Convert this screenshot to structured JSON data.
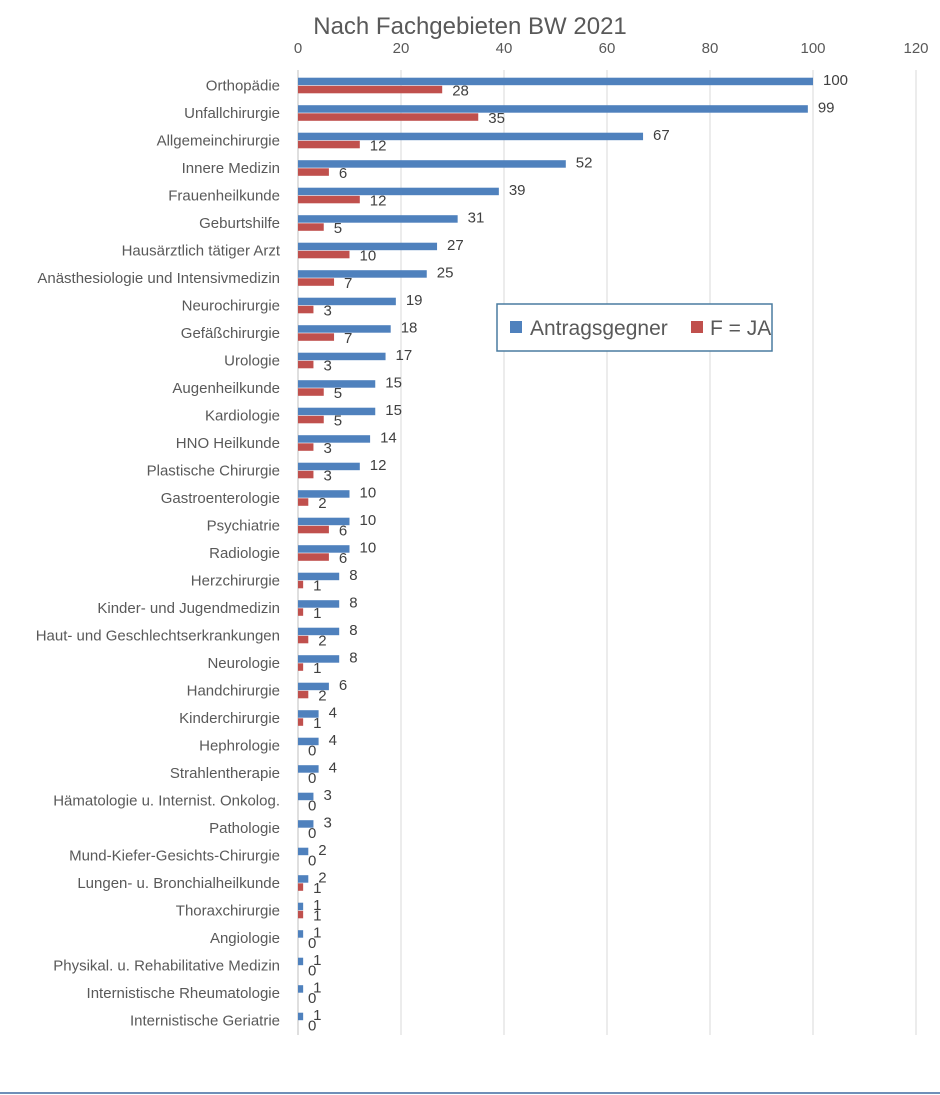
{
  "chart_data": {
    "type": "bar",
    "orientation": "horizontal",
    "title": "Nach Fachgebieten BW 2021",
    "x_ticks": [
      0,
      20,
      40,
      60,
      80,
      100,
      120
    ],
    "xlim": [
      0,
      120
    ],
    "grid": "vertical",
    "legend_position": "center-right",
    "categories": [
      "Orthopädie",
      "Unfallchirurgie",
      "Allgemeinchirurgie",
      "Innere Medizin",
      "Frauenheilkunde",
      "Geburtshilfe",
      "Hausärztlich tätiger Arzt",
      "Anästhesiologie und Intensivmedizin",
      "Neurochirurgie",
      "Gefäßchirurgie",
      "Urologie",
      "Augenheilkunde",
      "Kardiologie",
      "HNO Heilkunde",
      "Plastische Chirurgie",
      "Gastroenterologie",
      "Psychiatrie",
      "Radiologie",
      "Herzchirurgie",
      "Kinder- und Jugendmedizin",
      "Haut- und Geschlechtserkrankungen",
      "Neurologie",
      "Handchirurgie",
      "Kinderchirurgie",
      "Hephrologie",
      "Strahlentherapie",
      "Hämatologie u. Internist. Onkolog.",
      "Pathologie",
      "Mund-Kiefer-Gesichts-Chirurgie",
      "Lungen- u. Bronchialheilkunde",
      "Thoraxchirurgie",
      "Angiologie",
      "Physikal. u. Rehabilitative Medizin",
      "Internistische Rheumatologie",
      "Internistische Geriatrie"
    ],
    "series": [
      {
        "name": "Antragsgegner",
        "color": "#4f81bd",
        "values": [
          100,
          99,
          67,
          52,
          39,
          31,
          27,
          25,
          19,
          18,
          17,
          15,
          15,
          14,
          12,
          10,
          10,
          10,
          8,
          8,
          8,
          8,
          6,
          4,
          4,
          4,
          3,
          3,
          2,
          2,
          1,
          1,
          1,
          1,
          1
        ]
      },
      {
        "name": "F = JA",
        "color": "#c0504d",
        "values": [
          28,
          35,
          12,
          6,
          12,
          5,
          10,
          7,
          3,
          7,
          3,
          5,
          5,
          3,
          3,
          2,
          6,
          6,
          1,
          1,
          2,
          1,
          2,
          1,
          0,
          0,
          0,
          0,
          0,
          1,
          1,
          0,
          0,
          0,
          0
        ]
      }
    ]
  }
}
